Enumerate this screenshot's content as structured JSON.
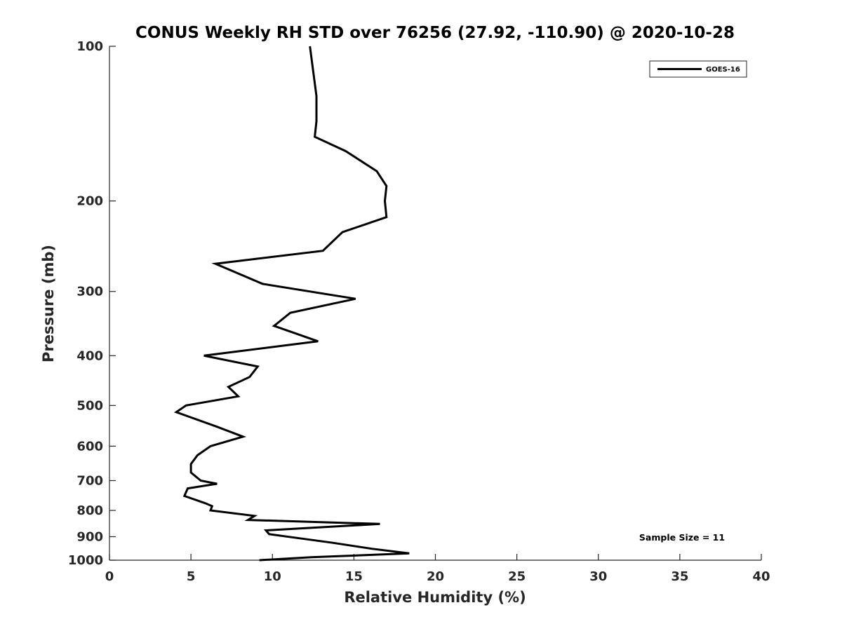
{
  "chart_data": {
    "type": "line",
    "title": "CONUS Weekly RH STD over 76256 (27.92, -110.90) @ 2020-10-28",
    "xlabel": "Relative Humidity (%)",
    "ylabel": "Pressure (mb)",
    "xlim": [
      0,
      40
    ],
    "ylim": [
      100,
      1000
    ],
    "yscale": "log",
    "y_reversed": true,
    "xticks": [
      0,
      5,
      10,
      15,
      20,
      25,
      30,
      35,
      40
    ],
    "yticks": [
      100,
      200,
      300,
      400,
      500,
      600,
      700,
      800,
      900,
      1000
    ],
    "grid": false,
    "legend_position": "top-right",
    "series": [
      {
        "name": "GOES-16",
        "color": "#000000",
        "x": [
          12.3,
          12.7,
          12.7,
          12.6,
          14.5,
          16.4,
          17.0,
          16.9,
          17.0,
          14.3,
          13.1,
          6.5,
          9.4,
          15.1,
          11.1,
          10.1,
          12.8,
          5.8,
          9.1,
          8.6,
          7.3,
          7.9,
          4.7,
          4.1,
          6.6,
          8.2,
          6.2,
          5.4,
          5.0,
          5.0,
          5.6,
          6.6,
          4.8,
          4.6,
          5.9,
          6.3,
          6.2,
          8.9,
          8.5,
          16.6,
          9.6,
          9.8,
          13.7,
          16.1,
          18.4,
          12.4,
          9.2
        ],
        "y": [
          100,
          125,
          140,
          150,
          160,
          175,
          187,
          200,
          215,
          230,
          250,
          265,
          290,
          310,
          330,
          350,
          375,
          400,
          420,
          440,
          460,
          480,
          500,
          515,
          550,
          575,
          600,
          625,
          650,
          675,
          700,
          710,
          725,
          750,
          775,
          785,
          800,
          820,
          835,
          850,
          875,
          890,
          925,
          950,
          970,
          987,
          1000
        ]
      }
    ],
    "annotations": [
      "Sample Size = 11"
    ]
  }
}
